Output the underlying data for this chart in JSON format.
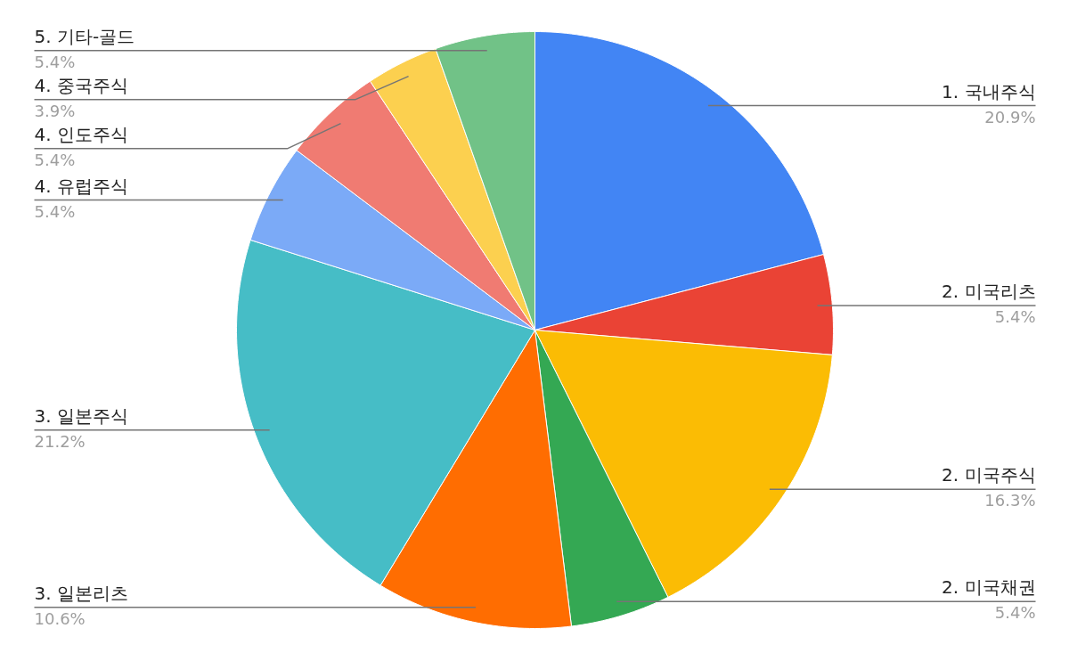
{
  "chart_data": {
    "type": "pie",
    "categories": [
      "1. 국내주식",
      "2. 미국리츠",
      "2. 미국주식",
      "2. 미국채권",
      "3. 일본리츠",
      "3. 일본주식",
      "4. 유럽주식",
      "4. 인도주식",
      "4. 중국주식",
      "5. 기타-골드"
    ],
    "values": [
      20.9,
      5.4,
      16.3,
      5.4,
      10.6,
      21.2,
      5.4,
      5.4,
      3.9,
      5.4
    ],
    "colors": [
      "#4285f4",
      "#ea4335",
      "#fbbc04",
      "#34a853",
      "#ff6d01",
      "#46bdc6",
      "#7baaf7",
      "#f07b72",
      "#fcd04f",
      "#71c287"
    ],
    "value_labels": [
      "20.9%",
      "5.4%",
      "16.3%",
      "5.4%",
      "10.6%",
      "21.2%",
      "5.4%",
      "5.4%",
      "3.9%",
      "5.4%"
    ]
  }
}
